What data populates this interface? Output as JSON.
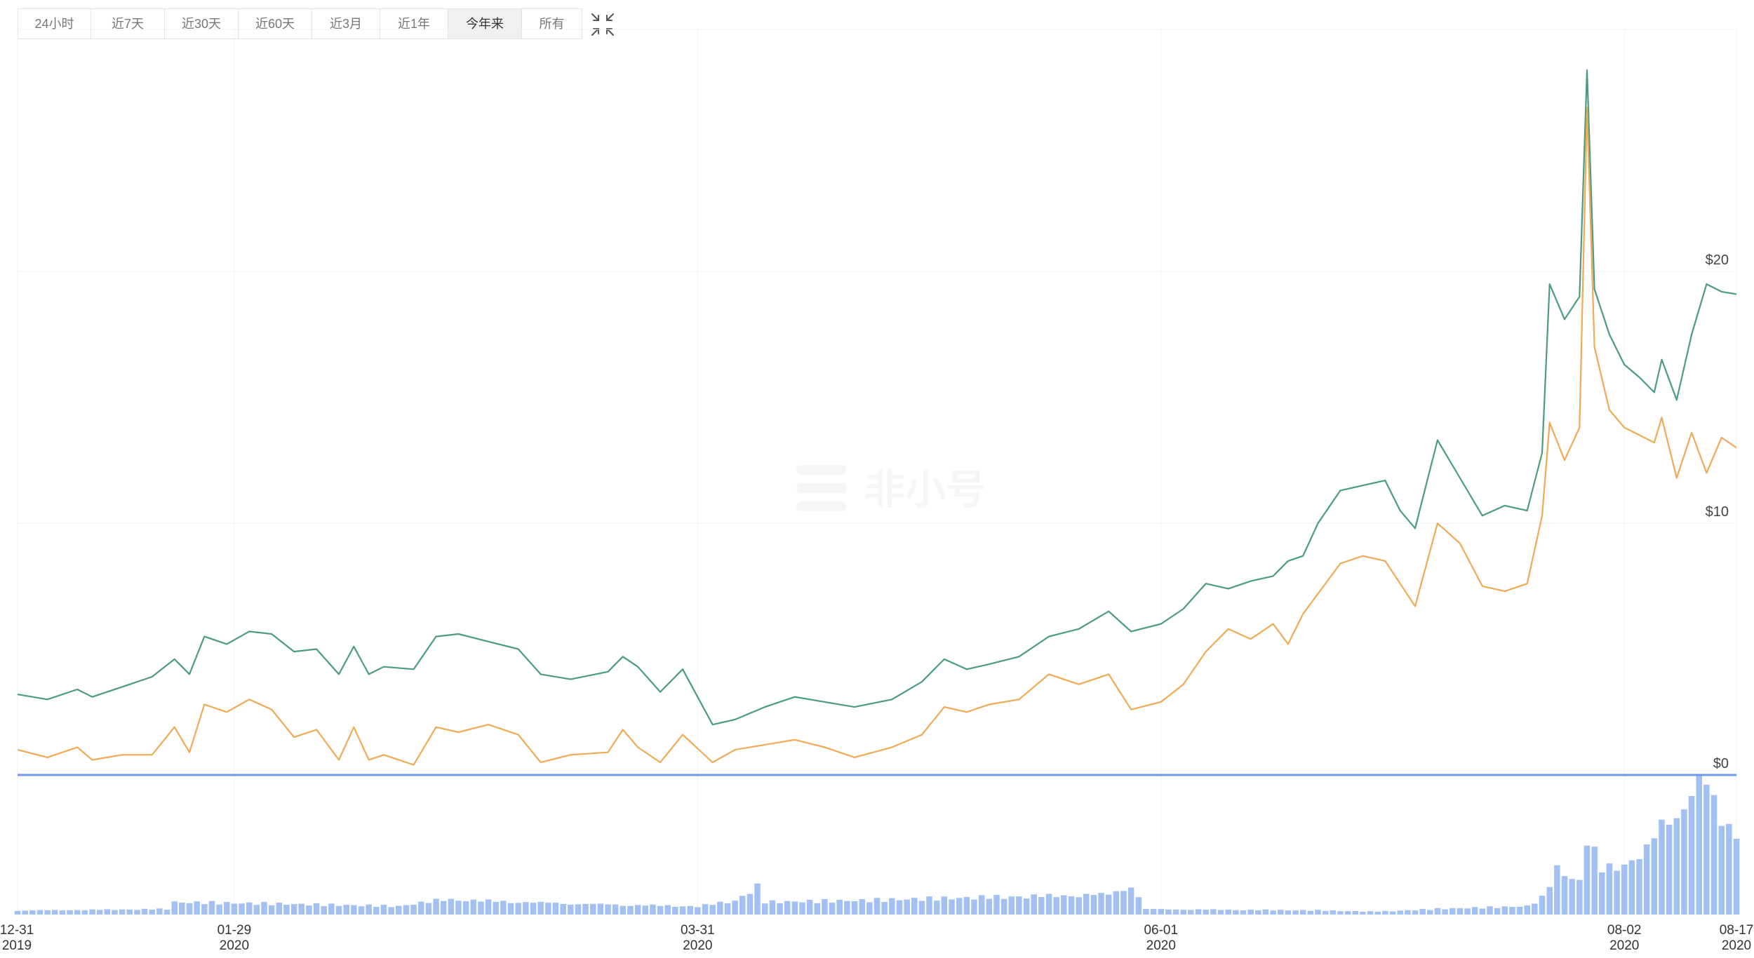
{
  "range_tabs": [
    {
      "label": "24小时",
      "active": false
    },
    {
      "label": "近7天",
      "active": false
    },
    {
      "label": "近30天",
      "active": false
    },
    {
      "label": "近60天",
      "active": false
    },
    {
      "label": "近3月",
      "active": false
    },
    {
      "label": "近1年",
      "active": false
    },
    {
      "label": "今年来",
      "active": true
    },
    {
      "label": "所有",
      "active": false
    }
  ],
  "collapse_icon": "collapse-arrows-icon",
  "watermark": "非小号",
  "chart_data": {
    "type": "line",
    "x_range": [
      "2019-12-31",
      "2020-08-17"
    ],
    "ylim": [
      0,
      28
    ],
    "y_ticks": [
      {
        "value": 0,
        "label": "$0"
      },
      {
        "value": 10,
        "label": "$10"
      },
      {
        "value": 20,
        "label": "$20"
      }
    ],
    "x_ticks": [
      {
        "date": "2019-12-31",
        "line1": "12-31",
        "line2": "2019"
      },
      {
        "date": "2020-01-29",
        "line1": "01-29",
        "line2": "2020"
      },
      {
        "date": "2020-03-31",
        "line1": "03-31",
        "line2": "2020"
      },
      {
        "date": "2020-06-01",
        "line1": "06-01",
        "line2": "2020"
      },
      {
        "date": "2020-08-02",
        "line1": "08-02",
        "line2": "2020"
      },
      {
        "date": "2020-08-17",
        "line1": "08-17",
        "line2": "2020"
      }
    ],
    "colors": {
      "series_a": "#4a9c7a",
      "series_b": "#f0a955",
      "volume": "#a3c0f2",
      "baseline": "#6f97ea"
    },
    "series": [
      {
        "key": "series_a",
        "points": [
          [
            "2019-12-31",
            3.2
          ],
          [
            "2020-01-04",
            3.0
          ],
          [
            "2020-01-08",
            3.4
          ],
          [
            "2020-01-10",
            3.1
          ],
          [
            "2020-01-14",
            3.5
          ],
          [
            "2020-01-18",
            3.9
          ],
          [
            "2020-01-21",
            4.6
          ],
          [
            "2020-01-23",
            4.0
          ],
          [
            "2020-01-25",
            5.5
          ],
          [
            "2020-01-28",
            5.2
          ],
          [
            "2020-01-31",
            5.7
          ],
          [
            "2020-02-03",
            5.6
          ],
          [
            "2020-02-06",
            4.9
          ],
          [
            "2020-02-09",
            5.0
          ],
          [
            "2020-02-12",
            4.0
          ],
          [
            "2020-02-14",
            5.1
          ],
          [
            "2020-02-16",
            4.0
          ],
          [
            "2020-02-18",
            4.3
          ],
          [
            "2020-02-22",
            4.2
          ],
          [
            "2020-02-25",
            5.5
          ],
          [
            "2020-02-28",
            5.6
          ],
          [
            "2020-03-03",
            5.3
          ],
          [
            "2020-03-07",
            5.0
          ],
          [
            "2020-03-10",
            4.0
          ],
          [
            "2020-03-14",
            3.8
          ],
          [
            "2020-03-19",
            4.1
          ],
          [
            "2020-03-21",
            4.7
          ],
          [
            "2020-03-23",
            4.3
          ],
          [
            "2020-03-26",
            3.3
          ],
          [
            "2020-03-29",
            4.2
          ],
          [
            "2020-04-02",
            2.0
          ],
          [
            "2020-04-05",
            2.2
          ],
          [
            "2020-04-09",
            2.7
          ],
          [
            "2020-04-13",
            3.1
          ],
          [
            "2020-04-17",
            2.9
          ],
          [
            "2020-04-21",
            2.7
          ],
          [
            "2020-04-26",
            3.0
          ],
          [
            "2020-04-30",
            3.7
          ],
          [
            "2020-05-03",
            4.6
          ],
          [
            "2020-05-06",
            4.2
          ],
          [
            "2020-05-09",
            4.4
          ],
          [
            "2020-05-13",
            4.7
          ],
          [
            "2020-05-17",
            5.5
          ],
          [
            "2020-05-21",
            5.8
          ],
          [
            "2020-05-25",
            6.5
          ],
          [
            "2020-05-28",
            5.7
          ],
          [
            "2020-06-01",
            6.0
          ],
          [
            "2020-06-04",
            6.6
          ],
          [
            "2020-06-07",
            7.6
          ],
          [
            "2020-06-10",
            7.4
          ],
          [
            "2020-06-13",
            7.7
          ],
          [
            "2020-06-16",
            7.9
          ],
          [
            "2020-06-18",
            8.5
          ],
          [
            "2020-06-20",
            8.7
          ],
          [
            "2020-06-22",
            10.0
          ],
          [
            "2020-06-25",
            11.3
          ],
          [
            "2020-06-28",
            11.5
          ],
          [
            "2020-07-01",
            11.7
          ],
          [
            "2020-07-03",
            10.5
          ],
          [
            "2020-07-05",
            9.8
          ],
          [
            "2020-07-08",
            13.3
          ],
          [
            "2020-07-11",
            11.8
          ],
          [
            "2020-07-14",
            10.3
          ],
          [
            "2020-07-17",
            10.7
          ],
          [
            "2020-07-20",
            10.5
          ],
          [
            "2020-07-22",
            12.8
          ],
          [
            "2020-07-23",
            19.5
          ],
          [
            "2020-07-25",
            18.1
          ],
          [
            "2020-07-27",
            19.0
          ],
          [
            "2020-07-28",
            28.0
          ],
          [
            "2020-07-29",
            19.3
          ],
          [
            "2020-07-31",
            17.5
          ],
          [
            "2020-08-02",
            16.3
          ],
          [
            "2020-08-04",
            15.8
          ],
          [
            "2020-08-06",
            15.2
          ],
          [
            "2020-08-07",
            16.5
          ],
          [
            "2020-08-09",
            14.9
          ],
          [
            "2020-08-11",
            17.5
          ],
          [
            "2020-08-13",
            19.5
          ],
          [
            "2020-08-15",
            19.2
          ],
          [
            "2020-08-17",
            19.1
          ]
        ]
      },
      {
        "key": "series_b",
        "points": [
          [
            "2019-12-31",
            1.0
          ],
          [
            "2020-01-04",
            0.7
          ],
          [
            "2020-01-08",
            1.1
          ],
          [
            "2020-01-10",
            0.6
          ],
          [
            "2020-01-14",
            0.8
          ],
          [
            "2020-01-18",
            0.8
          ],
          [
            "2020-01-21",
            1.9
          ],
          [
            "2020-01-23",
            0.9
          ],
          [
            "2020-01-25",
            2.8
          ],
          [
            "2020-01-28",
            2.5
          ],
          [
            "2020-01-31",
            3.0
          ],
          [
            "2020-02-03",
            2.6
          ],
          [
            "2020-02-06",
            1.5
          ],
          [
            "2020-02-09",
            1.8
          ],
          [
            "2020-02-12",
            0.6
          ],
          [
            "2020-02-14",
            1.9
          ],
          [
            "2020-02-16",
            0.6
          ],
          [
            "2020-02-18",
            0.8
          ],
          [
            "2020-02-22",
            0.4
          ],
          [
            "2020-02-25",
            1.9
          ],
          [
            "2020-02-28",
            1.7
          ],
          [
            "2020-03-03",
            2.0
          ],
          [
            "2020-03-07",
            1.6
          ],
          [
            "2020-03-10",
            0.5
          ],
          [
            "2020-03-14",
            0.8
          ],
          [
            "2020-03-19",
            0.9
          ],
          [
            "2020-03-21",
            1.8
          ],
          [
            "2020-03-23",
            1.1
          ],
          [
            "2020-03-26",
            0.5
          ],
          [
            "2020-03-29",
            1.6
          ],
          [
            "2020-04-02",
            0.5
          ],
          [
            "2020-04-05",
            1.0
          ],
          [
            "2020-04-09",
            1.2
          ],
          [
            "2020-04-13",
            1.4
          ],
          [
            "2020-04-17",
            1.1
          ],
          [
            "2020-04-21",
            0.7
          ],
          [
            "2020-04-26",
            1.1
          ],
          [
            "2020-04-30",
            1.6
          ],
          [
            "2020-05-03",
            2.7
          ],
          [
            "2020-05-06",
            2.5
          ],
          [
            "2020-05-09",
            2.8
          ],
          [
            "2020-05-13",
            3.0
          ],
          [
            "2020-05-17",
            4.0
          ],
          [
            "2020-05-21",
            3.6
          ],
          [
            "2020-05-25",
            4.0
          ],
          [
            "2020-05-28",
            2.6
          ],
          [
            "2020-06-01",
            2.9
          ],
          [
            "2020-06-04",
            3.6
          ],
          [
            "2020-06-07",
            4.9
          ],
          [
            "2020-06-10",
            5.8
          ],
          [
            "2020-06-13",
            5.4
          ],
          [
            "2020-06-16",
            6.0
          ],
          [
            "2020-06-18",
            5.2
          ],
          [
            "2020-06-20",
            6.4
          ],
          [
            "2020-06-22",
            7.2
          ],
          [
            "2020-06-25",
            8.4
          ],
          [
            "2020-06-28",
            8.7
          ],
          [
            "2020-07-01",
            8.5
          ],
          [
            "2020-07-03",
            7.6
          ],
          [
            "2020-07-05",
            6.7
          ],
          [
            "2020-07-08",
            10.0
          ],
          [
            "2020-07-11",
            9.2
          ],
          [
            "2020-07-14",
            7.5
          ],
          [
            "2020-07-17",
            7.3
          ],
          [
            "2020-07-20",
            7.6
          ],
          [
            "2020-07-22",
            10.3
          ],
          [
            "2020-07-23",
            14.0
          ],
          [
            "2020-07-25",
            12.5
          ],
          [
            "2020-07-27",
            13.8
          ],
          [
            "2020-07-28",
            26.5
          ],
          [
            "2020-07-29",
            17.0
          ],
          [
            "2020-07-31",
            14.5
          ],
          [
            "2020-08-02",
            13.8
          ],
          [
            "2020-08-04",
            13.5
          ],
          [
            "2020-08-06",
            13.2
          ],
          [
            "2020-08-07",
            14.2
          ],
          [
            "2020-08-09",
            11.8
          ],
          [
            "2020-08-11",
            13.6
          ],
          [
            "2020-08-13",
            12.0
          ],
          [
            "2020-08-15",
            13.4
          ],
          [
            "2020-08-17",
            13.0
          ]
        ]
      }
    ],
    "volume": {
      "note_scale": "relative",
      "anchors": [
        [
          "2019-12-31",
          0.03
        ],
        [
          "2020-01-20",
          0.04
        ],
        [
          "2020-01-21",
          0.09
        ],
        [
          "2020-02-20",
          0.06
        ],
        [
          "2020-02-26",
          0.11
        ],
        [
          "2020-03-15",
          0.08
        ],
        [
          "2020-03-31",
          0.06
        ],
        [
          "2020-04-05",
          0.1
        ],
        [
          "2020-04-08",
          0.2
        ],
        [
          "2020-04-09",
          0.09
        ],
        [
          "2020-04-22",
          0.1
        ],
        [
          "2020-05-05",
          0.12
        ],
        [
          "2020-05-25",
          0.15
        ],
        [
          "2020-05-28",
          0.22
        ],
        [
          "2020-05-30",
          0.04
        ],
        [
          "2020-06-22",
          0.03
        ],
        [
          "2020-06-30",
          0.02
        ],
        [
          "2020-07-08",
          0.04
        ],
        [
          "2020-07-20",
          0.06
        ],
        [
          "2020-07-22",
          0.12
        ],
        [
          "2020-07-24",
          0.33
        ],
        [
          "2020-07-27",
          0.24
        ],
        [
          "2020-07-28",
          0.56
        ],
        [
          "2020-07-30",
          0.33
        ],
        [
          "2020-08-03",
          0.4
        ],
        [
          "2020-08-05",
          0.48
        ],
        [
          "2020-08-07",
          0.66
        ],
        [
          "2020-08-09",
          0.75
        ],
        [
          "2020-08-11",
          0.92
        ],
        [
          "2020-08-12",
          1.0
        ],
        [
          "2020-08-14",
          0.86
        ],
        [
          "2020-08-15",
          0.65
        ],
        [
          "2020-08-16",
          0.72
        ],
        [
          "2020-08-17",
          0.62
        ]
      ]
    }
  }
}
